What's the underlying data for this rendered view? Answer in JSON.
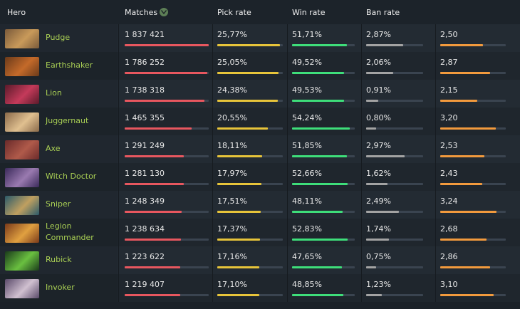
{
  "headers": {
    "hero": "Hero",
    "matches": "Matches",
    "pick_rate": "Pick rate",
    "win_rate": "Win rate",
    "ban_rate": "Ban rate"
  },
  "colors": {
    "hero_name": "#a9cf54",
    "matches_bar": "#e8575f",
    "pick_bar": "#e7c43a",
    "win_bar": "#3ede7a",
    "ban_bar": "#a3a3a3",
    "last_bar": "#f29a3d"
  },
  "rows": [
    {
      "hero": "Pudge",
      "name_lines": [
        "Pudge"
      ],
      "portrait": "pudge-portrait",
      "matches": "1 837 421",
      "matches_frac": 1.0,
      "pick": "25,77%",
      "pick_frac": 0.96,
      "win": "51,71%",
      "win_frac": 0.87,
      "ban": "2,87%",
      "ban_frac": 0.65,
      "extra": "2,50",
      "extra_frac": 0.65,
      "c1": "#7a5a3a",
      "c2": "#c99a5a"
    },
    {
      "hero": "Earthshaker",
      "name_lines": [
        "Earthshaker"
      ],
      "portrait": "earthshaker-portrait",
      "matches": "1 786 252",
      "matches_frac": 0.98,
      "pick": "25,05%",
      "pick_frac": 0.94,
      "win": "49,52%",
      "win_frac": 0.83,
      "ban": "2,06%",
      "ban_frac": 0.47,
      "extra": "2,87",
      "extra_frac": 0.76,
      "c1": "#6a3a1a",
      "c2": "#c46a2a"
    },
    {
      "hero": "Lion",
      "name_lines": [
        "Lion"
      ],
      "portrait": "lion-portrait",
      "matches": "1 738 318",
      "matches_frac": 0.95,
      "pick": "24,38%",
      "pick_frac": 0.92,
      "win": "49,53%",
      "win_frac": 0.83,
      "ban": "0,91%",
      "ban_frac": 0.21,
      "extra": "2,15",
      "extra_frac": 0.57,
      "c1": "#5a1a2a",
      "c2": "#c43a5a"
    },
    {
      "hero": "Juggernaut",
      "name_lines": [
        "Juggernaut"
      ],
      "portrait": "juggernaut-portrait",
      "matches": "1 465 355",
      "matches_frac": 0.8,
      "pick": "20,55%",
      "pick_frac": 0.77,
      "win": "54,24%",
      "win_frac": 0.92,
      "ban": "0,80%",
      "ban_frac": 0.18,
      "extra": "3,20",
      "extra_frac": 0.85,
      "c1": "#8a6a4a",
      "c2": "#e0c090"
    },
    {
      "hero": "Axe",
      "name_lines": [
        "Axe"
      ],
      "portrait": "axe-portrait",
      "matches": "1 291 249",
      "matches_frac": 0.7,
      "pick": "18,11%",
      "pick_frac": 0.68,
      "win": "51,85%",
      "win_frac": 0.87,
      "ban": "2,97%",
      "ban_frac": 0.68,
      "extra": "2,53",
      "extra_frac": 0.67,
      "c1": "#6a2a2a",
      "c2": "#b05a4a"
    },
    {
      "hero": "Witch Doctor",
      "name_lines": [
        "Witch Doctor"
      ],
      "portrait": "witch-doctor-portrait",
      "matches": "1 281 130",
      "matches_frac": 0.7,
      "pick": "17,97%",
      "pick_frac": 0.67,
      "win": "52,66%",
      "win_frac": 0.89,
      "ban": "1,62%",
      "ban_frac": 0.37,
      "extra": "2,43",
      "extra_frac": 0.64,
      "c1": "#3a2a5a",
      "c2": "#9a7ab0"
    },
    {
      "hero": "Sniper",
      "name_lines": [
        "Sniper"
      ],
      "portrait": "sniper-portrait",
      "matches": "1 248 349",
      "matches_frac": 0.68,
      "pick": "17,51%",
      "pick_frac": 0.66,
      "win": "48,11%",
      "win_frac": 0.81,
      "ban": "2,49%",
      "ban_frac": 0.57,
      "extra": "3,24",
      "extra_frac": 0.86,
      "c1": "#2a5a6a",
      "c2": "#c0a060"
    },
    {
      "hero": "Legion Commander",
      "name_lines": [
        "Legion",
        "Commander"
      ],
      "portrait": "legion-commander-portrait",
      "matches": "1 238 634",
      "matches_frac": 0.67,
      "pick": "17,37%",
      "pick_frac": 0.65,
      "win": "52,83%",
      "win_frac": 0.89,
      "ban": "1,74%",
      "ban_frac": 0.4,
      "extra": "2,68",
      "extra_frac": 0.71,
      "c1": "#7a3a1a",
      "c2": "#e0a040"
    },
    {
      "hero": "Rubick",
      "name_lines": [
        "Rubick"
      ],
      "portrait": "rubick-portrait",
      "matches": "1 223 622",
      "matches_frac": 0.66,
      "pick": "17,16%",
      "pick_frac": 0.64,
      "win": "47,65%",
      "win_frac": 0.8,
      "ban": "0,75%",
      "ban_frac": 0.17,
      "extra": "2,86",
      "extra_frac": 0.76,
      "c1": "#1a3a1a",
      "c2": "#6ac040"
    },
    {
      "hero": "Invoker",
      "name_lines": [
        "Invoker"
      ],
      "portrait": "invoker-portrait",
      "matches": "1 219 407",
      "matches_frac": 0.66,
      "pick": "17,10%",
      "pick_frac": 0.64,
      "win": "48,85%",
      "win_frac": 0.82,
      "ban": "1,23%",
      "ban_frac": 0.28,
      "extra": "3,10",
      "extra_frac": 0.82,
      "c1": "#5a4a6a",
      "c2": "#d0c0d0"
    }
  ]
}
